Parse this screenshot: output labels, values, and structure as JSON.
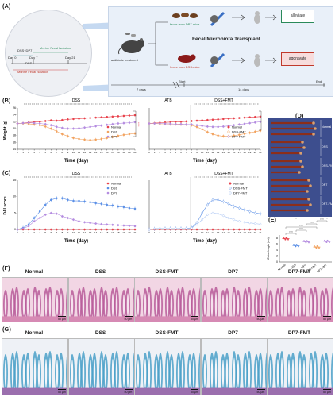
{
  "panels": {
    "A": "(A)",
    "B": "(B)",
    "C": "(C)",
    "D": "(D)",
    "E": "(E)",
    "F": "(F)",
    "G": "(G)"
  },
  "panel_a": {
    "dss_dp7": "DSS+DP7",
    "murine_fecal_1": "Murine Fecal Isolation",
    "day0": "Day 0",
    "day7": "Day 7",
    "day21": "Day 21",
    "dss": "DSS",
    "murine_fecal_2": "Murine Fecal Isolation",
    "fmt_title": "Fecal Microbiota Transplant",
    "feces_dp7": "feces from DP7-mice",
    "feces_dss": "feces from DSS-mice",
    "antibiotic": "antibiotic treatment",
    "alleviate": "alleviate",
    "aggravate": "aggravate",
    "days7": "7 days",
    "days14": "14 days",
    "start": "Start",
    "end": "End"
  },
  "panel_b": {
    "left_title": "DSS",
    "right_atb": "ATB",
    "right_fmt": "DSS+FMT",
    "ylabel": "Weight (g)",
    "xlabel": "Time (day)",
    "left_legend": [
      "Normal",
      "DSS",
      "DP7"
    ],
    "right_legend": [
      "Normal",
      "DSS-FMT",
      "DP7-FMT"
    ],
    "yticks": [
      "26",
      "24",
      "22",
      "20",
      "18",
      "16",
      "14"
    ]
  },
  "panel_c": {
    "left_title": "DSS",
    "right_atb": "ATB",
    "right_fmt": "DSS+FMT",
    "ylabel": "DAI score",
    "xlabel": "Time (day)",
    "left_legend": [
      "Normal",
      "DSS",
      "DP7"
    ],
    "right_legend": [
      "Normal",
      "DSS-FMT",
      "DP7-FMT"
    ],
    "yticks": [
      "15",
      "10",
      "5",
      "0"
    ]
  },
  "panel_d": {
    "labels": [
      "Normal",
      "DSS",
      "DSS-FMT",
      "DP7",
      "DP7-FMT"
    ]
  },
  "panel_e": {
    "ylabel": "Colon length (cm)",
    "yticks": [
      "8",
      "6",
      "4",
      "2",
      "0"
    ]
  },
  "panel_f": {
    "titles": [
      "Normal",
      "DSS",
      "DSS-FMT",
      "DP7",
      "DP7-FMT"
    ]
  },
  "panel_g": {
    "titles": [
      "Normal",
      "DSS",
      "DSS-FMT",
      "DP7",
      "DP7-FMT"
    ]
  },
  "scalebar": "50 μm",
  "colors": {
    "normal": "#e8404a",
    "dss": "#f2a25e",
    "dp7": "#b48ce0",
    "blue": "#5b8fe6",
    "lightblue": "#a9c4f2"
  },
  "chart_data": [
    {
      "type": "line",
      "title": "DSS",
      "xlabel": "Time (day)",
      "ylabel": "Weight (g)",
      "ylim": [
        14,
        26
      ],
      "x": [
        0,
        1,
        2,
        3,
        4,
        5,
        6,
        7,
        8,
        9,
        10,
        11,
        12,
        13,
        14,
        15,
        16,
        17,
        18,
        19,
        20,
        21
      ],
      "series": [
        {
          "name": "Normal",
          "values": [
            21.5,
            21.6,
            21.8,
            21.9,
            22.0,
            22.2,
            22.4,
            22.3,
            22.5,
            22.7,
            22.8,
            22.9,
            23.0,
            23.1,
            23.2,
            23.3,
            23.4,
            23.5,
            23.6,
            23.7,
            23.8,
            23.9
          ]
        },
        {
          "name": "DSS",
          "values": [
            21.5,
            21.5,
            21.4,
            21.2,
            21.0,
            20.6,
            20.0,
            19.2,
            18.4,
            17.8,
            17.3,
            17.0,
            16.8,
            16.7,
            16.8,
            17.0,
            17.3,
            17.6,
            17.9,
            18.2,
            18.4,
            18.6
          ]
        },
        {
          "name": "DP7",
          "values": [
            21.5,
            21.6,
            21.7,
            21.6,
            21.5,
            21.3,
            21.0,
            20.5,
            20.2,
            20.0,
            20.0,
            20.1,
            20.3,
            20.5,
            20.7,
            20.9,
            21.1,
            21.3,
            21.5,
            21.6,
            21.7,
            21.9
          ]
        }
      ]
    },
    {
      "type": "line",
      "title": "ATB / DSS+FMT",
      "xlabel": "Time (day)",
      "ylabel": "Weight (g)",
      "ylim": [
        14,
        26
      ],
      "x": [
        0,
        1,
        2,
        3,
        4,
        5,
        6,
        7,
        8,
        9,
        10,
        11,
        12,
        13,
        14,
        15,
        16,
        17,
        18,
        19,
        20,
        21
      ],
      "series": [
        {
          "name": "Normal",
          "values": [
            21.5,
            21.6,
            21.7,
            21.8,
            21.9,
            22.0,
            22.0,
            22.1,
            22.2,
            22.3,
            22.4,
            22.5,
            22.6,
            22.7,
            22.8,
            22.9,
            23.0,
            23.1,
            23.2,
            23.3,
            23.4,
            23.5
          ]
        },
        {
          "name": "DSS-FMT",
          "values": [
            21.5,
            21.5,
            21.4,
            21.4,
            21.3,
            21.3,
            21.2,
            21.2,
            21.0,
            20.5,
            19.8,
            19.0,
            18.4,
            18.0,
            17.8,
            17.8,
            18.0,
            18.2,
            18.5,
            18.8,
            19.1,
            19.4
          ]
        },
        {
          "name": "DP7-FMT",
          "values": [
            21.5,
            21.5,
            21.5,
            21.4,
            21.4,
            21.3,
            21.3,
            21.2,
            21.2,
            21.0,
            20.8,
            20.6,
            20.5,
            20.5,
            20.6,
            20.8,
            21.0,
            21.2,
            21.4,
            21.6,
            21.8,
            22.0
          ]
        }
      ]
    },
    {
      "type": "line",
      "title": "DSS",
      "xlabel": "Time (day)",
      "ylabel": "DAI score",
      "ylim": [
        0,
        15
      ],
      "x": [
        0,
        1,
        2,
        3,
        4,
        5,
        6,
        7,
        8,
        9,
        10,
        11,
        12,
        13,
        14,
        15,
        16,
        17,
        18,
        19,
        20,
        21
      ],
      "series": [
        {
          "name": "Normal",
          "values": [
            0,
            0,
            0,
            0,
            0,
            0,
            0,
            0,
            0,
            0,
            0,
            0,
            0,
            0,
            0,
            0,
            0,
            0,
            0,
            0,
            0,
            0
          ]
        },
        {
          "name": "DSS",
          "values": [
            0,
            0.5,
            1.5,
            3.5,
            5.5,
            7.5,
            9.0,
            9.5,
            9.5,
            9.0,
            8.7,
            8.7,
            8.5,
            8.3,
            8.0,
            7.8,
            7.5,
            7.3,
            7.0,
            6.8,
            6.5,
            6.3
          ]
        },
        {
          "name": "DP7",
          "values": [
            0,
            0.3,
            1.0,
            2.5,
            3.5,
            4.5,
            5.0,
            4.8,
            4.0,
            3.5,
            3.0,
            2.5,
            2.2,
            2.0,
            1.8,
            1.6,
            1.5,
            1.4,
            1.3,
            1.2,
            1.1,
            1.0
          ]
        }
      ]
    },
    {
      "type": "line",
      "title": "ATB / DSS+FMT",
      "xlabel": "Time (day)",
      "ylabel": "DAI score",
      "ylim": [
        0,
        15
      ],
      "x": [
        0,
        1,
        2,
        3,
        4,
        5,
        6,
        7,
        8,
        9,
        10,
        11,
        12,
        13,
        14,
        15,
        16,
        17,
        18,
        19,
        20,
        21
      ],
      "series": [
        {
          "name": "Normal",
          "values": [
            0,
            0,
            0,
            0,
            0,
            0,
            0,
            0,
            0,
            0,
            0,
            0,
            0,
            0,
            0,
            0,
            0,
            0,
            0,
            0,
            0,
            0
          ]
        },
        {
          "name": "DSS-FMT",
          "values": [
            0,
            0.2,
            0.3,
            0.3,
            0.3,
            0.3,
            0.3,
            0.3,
            0.5,
            2.0,
            5.0,
            7.5,
            9.0,
            9.0,
            8.5,
            7.8,
            7.0,
            6.5,
            6.0,
            5.5,
            5.0,
            4.8
          ]
        },
        {
          "name": "DP7-FMT",
          "values": [
            0,
            0.2,
            0.3,
            0.3,
            0.3,
            0.3,
            0.3,
            0.3,
            0.4,
            1.5,
            3.0,
            4.5,
            5.0,
            4.8,
            4.2,
            3.5,
            3.0,
            2.5,
            2.2,
            2.0,
            1.8,
            1.6
          ]
        }
      ]
    },
    {
      "type": "bar",
      "title": "",
      "ylabel": "Colon length (cm)",
      "ylim": [
        0,
        9
      ],
      "categories": [
        "Normal",
        "DSS",
        "DP7",
        "DSS-FMT",
        "DP7-FMT"
      ],
      "values": [
        7.8,
        5.5,
        6.8,
        5.0,
        6.9
      ],
      "significance": [
        "****",
        "****",
        "****",
        "****",
        "****",
        "**",
        "****",
        "****"
      ]
    }
  ]
}
